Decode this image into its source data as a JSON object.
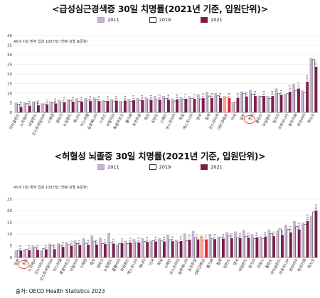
{
  "colors": {
    "c2011": "#c9b2d3",
    "c2019": "#ffffff",
    "c2021": "#7b1f4a",
    "highlight": "#e2262a"
  },
  "legend": {
    "s2011": "2011",
    "s2019": "2019",
    "s2021": "2021"
  },
  "source": "출처: OECD Health Statistics 2023",
  "chart_data": [
    {
      "type": "bar",
      "title": "<급성심근경색증 30일 치명률(2021년 기준, 입원단위)>",
      "note": "45세 이상 환자 입원 100건당 (연령·성별 표준화)",
      "ylim": [
        0,
        40
      ],
      "yticks": [
        0,
        5,
        10,
        15,
        20,
        25,
        30,
        35,
        40
      ],
      "highlight_category": "한국",
      "categories": [
        "아이슬란드",
        "노르웨이",
        "네덜란드",
        "오스트레일리아",
        "스웨덴",
        "덴마크",
        "뉴질랜드",
        "캐나다",
        "이스라엘",
        "슬로베니아",
        "스위스",
        "이탈리아",
        "룩셈부르크",
        "벨기에",
        "포르투갈",
        "체코",
        "핀란드",
        "스페인",
        "오스트리아",
        "독일",
        "에스토니아",
        "영국",
        "칠레",
        "코스타리카",
        "OECD평균",
        "미국",
        "일본",
        "한국",
        "폴란드",
        "아일랜드",
        "헝가리",
        "리투아니아",
        "튀르키예",
        "라트비아",
        "멕시코"
      ],
      "series": [
        {
          "name": "2011",
          "values": [
            5.0,
            5.2,
            5.6,
            4.6,
            5.6,
            6.5,
            6.8,
            7.2,
            7.3,
            7.8,
            6.2,
            6.8,
            5.8,
            6.9,
            7.4,
            7.8,
            8.4,
            8.4,
            7.1,
            7.9,
            8.3,
            9.3,
            10.6,
            10.0,
            8.3,
            5.1,
            10.8,
            11.7,
            8.6,
            8.5,
            12.4,
            9.5,
            14.8,
            11.4,
            28.3
          ]
        },
        {
          "name": "2019",
          "values": [
            4.3,
            4.5,
            5.3,
            4.4,
            5.2,
            5.3,
            6.1,
            5.8,
            6.4,
            6.5,
            5.8,
            5.9,
            5.3,
            5.8,
            6.2,
            6.5,
            6.6,
            7.3,
            5.9,
            6.8,
            7.2,
            7.0,
            8.5,
            8.6,
            7.5,
            5.2,
            9.9,
            9.6,
            8.4,
            7.3,
            9.7,
            9.7,
            11.3,
            10.3,
            27.5
          ]
        },
        {
          "name": "2021",
          "values": [
            2.8,
            3.4,
            3.6,
            4.1,
            4.6,
            5.3,
            5.5,
            5.6,
            5.8,
            5.8,
            5.9,
            6.0,
            6.1,
            6.3,
            6.4,
            6.4,
            6.5,
            6.6,
            6.8,
            7.0,
            7.0,
            7.3,
            7.4,
            7.4,
            7.4,
            7.5,
            8.2,
            8.4,
            8.4,
            8.5,
            9.1,
            10.7,
            12.3,
            15.9,
            23.7
          ]
        }
      ]
    },
    {
      "type": "bar",
      "title": "<허혈성 뇌졸중 30일 치명률(2021년 기준, 입원단위)>",
      "note": "45세 이상 환자 입원 100건당 (연령·성별 표준화)",
      "ylim": [
        0,
        25
      ],
      "yticks": [
        0,
        5,
        10,
        15,
        20,
        25
      ],
      "highlight_category": "한국",
      "categories": [
        "일본",
        "한국",
        "노르웨이",
        "코스타리카",
        "오스트레일리아",
        "이스라엘",
        "룩셈부르크",
        "이탈리아",
        "스웨덴",
        "체코",
        "덴마크",
        "뉴질랜드",
        "콜롬비아",
        "아일랜드",
        "에스토니아",
        "캐나다",
        "미국",
        "독일",
        "스페인",
        "오스트리아",
        "슬로베니아",
        "포르투갈",
        "OECD평균",
        "벨기에",
        "칠레",
        "핀란드",
        "영국",
        "네덜란드",
        "헝가리",
        "프랑스",
        "폴란드",
        "아이슬란드",
        "리투아니아",
        "라트비아",
        "튀르키예",
        "멕시코"
      ],
      "series": [
        {
          "name": "2011",
          "values": [
            3.0,
            3.5,
            5.0,
            2.9,
            5.9,
            6.0,
            6.5,
            7.2,
            8.2,
            9.4,
            8.5,
            10.5,
            5.5,
            7.1,
            7.8,
            8.2,
            7.1,
            8.2,
            9.7,
            7.5,
            10.3,
            11.3,
            9.2,
            10.0,
            8.9,
            10.7,
            11.1,
            11.8,
            9.9,
            9.0,
            11.9,
            11.4,
            14.0,
            15.5,
            14.8,
            17.8
          ]
        },
        {
          "name": "2019",
          "values": [
            3.0,
            3.4,
            4.3,
            3.9,
            5.0,
            5.3,
            5.5,
            6.0,
            6.1,
            7.0,
            6.0,
            6.2,
            5.9,
            6.0,
            6.3,
            6.8,
            7.2,
            7.1,
            7.6,
            6.5,
            7.3,
            8.4,
            7.4,
            8.0,
            8.4,
            9.4,
            8.5,
            9.1,
            8.1,
            8.0,
            10.2,
            12.2,
            12.0,
            13.2,
            14.1,
            19.5
          ]
        },
        {
          "name": "2021",
          "values": [
            2.9,
            3.1,
            3.2,
            3.4,
            3.5,
            4.5,
            5.0,
            5.3,
            5.4,
            5.5,
            5.7,
            5.9,
            6.1,
            6.3,
            6.4,
            6.6,
            6.8,
            6.8,
            6.9,
            7.0,
            7.6,
            7.7,
            7.7,
            7.8,
            8.0,
            8.2,
            8.3,
            8.5,
            8.6,
            8.9,
            9.1,
            9.6,
            10.7,
            12.0,
            15.6,
            20.0
          ]
        }
      ]
    }
  ]
}
